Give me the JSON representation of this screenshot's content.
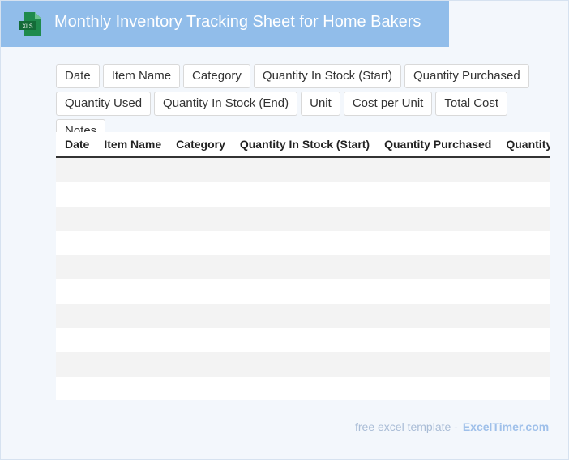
{
  "header": {
    "title": "Monthly Inventory Tracking Sheet for Home Bakers"
  },
  "chips": [
    "Date",
    "Item Name",
    "Category",
    "Quantity In Stock (Start)",
    "Quantity Purchased",
    "Quantity Used",
    "Quantity In Stock (End)",
    "Unit",
    "Cost per Unit",
    "Total Cost",
    "Notes"
  ],
  "table": {
    "columns": [
      "Date",
      "Item Name",
      "Category",
      "Quantity In Stock (Start)",
      "Quantity Purchased",
      "Quantity Used"
    ]
  },
  "footer": {
    "text": "free excel template -",
    "link": "ExcelTimer.com"
  }
}
